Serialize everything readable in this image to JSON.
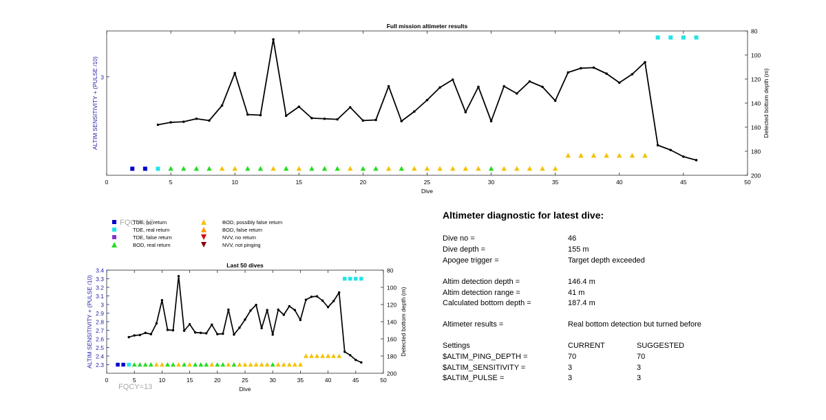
{
  "colors": {
    "tde_no": "#0000cc",
    "tde_real": "#22e5e5",
    "tde_false": "#8833cc",
    "bod_real": "#22dd22",
    "bod_possibly_false": "#f2c200",
    "bod_false": "#ff9900",
    "nvv_no": "#dd0000",
    "nvv_not_pinging": "#880000",
    "left_axis": "#1f1fa8",
    "fqcy": "#a6a6a6"
  },
  "chart_data": [
    {
      "type": "line",
      "title": "Full mission altimeter results",
      "xlabel": "Dive",
      "ylabel_left": "ALTIM SENSITIVITY + (PULSE /10)",
      "ylabel_right": "Detected bottom depth (m)",
      "xlim": [
        0,
        50
      ],
      "x_ticks": [
        0,
        5,
        10,
        15,
        20,
        25,
        30,
        35,
        40,
        45,
        50
      ],
      "ylim_left": [
        2.25,
        3.35
      ],
      "y_ticks_left": [
        3
      ],
      "ylim_right": [
        80,
        200
      ],
      "y_ticks_right": [
        80,
        100,
        120,
        140,
        160,
        180,
        200
      ],
      "right_axis_reversed": true,
      "grid": false,
      "series": [
        {
          "name": "Detected bottom depth",
          "axis": "right",
          "x": [
            4,
            5,
            6,
            7,
            8,
            9,
            10,
            11,
            12,
            13,
            14,
            15,
            16,
            17,
            18,
            19,
            20,
            21,
            22,
            23,
            24,
            25,
            26,
            27,
            28,
            29,
            30,
            31,
            32,
            33,
            34,
            35,
            36,
            37,
            38,
            39,
            40,
            41,
            42,
            43,
            44,
            45,
            46
          ],
          "y": [
            158,
            156,
            155.5,
            153,
            154.5,
            142,
            115,
            149.5,
            150,
            87,
            150.5,
            143,
            152.5,
            153,
            153.5,
            143.5,
            154.5,
            154,
            126,
            155,
            147,
            137.5,
            127,
            120.5,
            147.5,
            126.5,
            155,
            126,
            132,
            122,
            126.5,
            138,
            114.5,
            111,
            110.5,
            115.5,
            123,
            116,
            106,
            175,
            179,
            184.5,
            187.4
          ]
        }
      ],
      "markers": [
        {
          "kind": "TDE, no return",
          "y_left": 2.3,
          "x": [
            2,
            3
          ]
        },
        {
          "kind": "TDE, real return",
          "y_left": 2.3,
          "x": [
            4
          ]
        },
        {
          "kind": "BOD, real return",
          "y_left": 2.3,
          "x": [
            5,
            6,
            7,
            8,
            11,
            12,
            14,
            16,
            17,
            18,
            20,
            21,
            23,
            30
          ]
        },
        {
          "kind": "BOD, possibly false return",
          "y_left": 2.3,
          "x": [
            9,
            10,
            13,
            15,
            19,
            22,
            24,
            25,
            26,
            27,
            28,
            29,
            31,
            32,
            33,
            34,
            35
          ]
        },
        {
          "kind": "BOD, possibly false return",
          "y_left": 2.4,
          "x": [
            36,
            37,
            38,
            39,
            40,
            41,
            42
          ]
        },
        {
          "kind": "TDE, real return",
          "y_left": 3.3,
          "x": [
            43,
            44,
            45,
            46
          ]
        }
      ]
    },
    {
      "type": "line",
      "title": "Last 50 dives",
      "xlabel": "Dive",
      "ylabel_left": "ALTIM SENSITIVITY + (PULSE /10)",
      "ylabel_right": "Detected bottom depth (m)",
      "xlim": [
        0,
        50
      ],
      "x_ticks": [
        0,
        5,
        10,
        15,
        20,
        25,
        30,
        35,
        40,
        45,
        50
      ],
      "ylim_left": [
        2.2,
        3.4
      ],
      "y_ticks_left": [
        2.3,
        2.4,
        2.5,
        2.6,
        2.7,
        2.8,
        2.9,
        3.0,
        3.1,
        3.2,
        3.3,
        3.4
      ],
      "y_tick_labels_left": [
        "2.3",
        "2.4",
        "2.5",
        "2.6",
        "2.7",
        "2.8",
        "2.9",
        "3",
        "3.1",
        "3.2",
        "3.3",
        "3.4"
      ],
      "ylim_right": [
        80,
        200
      ],
      "y_ticks_right": [
        80,
        100,
        120,
        140,
        160,
        180,
        200
      ],
      "right_axis_reversed": true,
      "grid": false
    }
  ],
  "legend": [
    {
      "label": "TDE, no return",
      "shape": "square",
      "color": "#0000cc"
    },
    {
      "label": "TDE, real return",
      "shape": "square",
      "color": "#22e5e5"
    },
    {
      "label": "TDE, false return",
      "shape": "square",
      "color": "#8833cc"
    },
    {
      "label": "BOD, real return",
      "shape": "triangle-up",
      "color": "#22dd22"
    },
    {
      "label": "BOD, possibly false return",
      "shape": "triangle-up",
      "color": "#f2c200"
    },
    {
      "label": "BOD, false return",
      "shape": "triangle-up",
      "color": "#ff9900"
    },
    {
      "label": "NVV, no return",
      "shape": "triangle-down",
      "color": "#dd0000"
    },
    {
      "label": "NVV, not pinging",
      "shape": "triangle-down",
      "color": "#880000"
    }
  ],
  "fqcy_label": "FQCY=13",
  "diagnostic": {
    "heading": "Altimeter diagnostic for latest dive:",
    "dive_no_label": "Dive no =",
    "dive_no": "46",
    "dive_depth_label": "Dive depth =",
    "dive_depth": "155 m",
    "apogee_label": "Apogee trigger =",
    "apogee": "Target depth exceeded",
    "altim_depth_label": "Altim detection depth =",
    "altim_depth": "146.4 m",
    "altim_range_label": "Altim detection range =",
    "altim_range": "41 m",
    "calc_depth_label": "Calculated bottom depth =",
    "calc_depth": "187.4 m",
    "results_label": "Altimeter results =",
    "results": "Real bottom detection but turned before",
    "settings_label": "Settings",
    "current_label": "CURRENT",
    "suggested_label": "SUGGESTED",
    "settings": [
      {
        "name": "$ALTIM_PING_DEPTH =",
        "current": "70",
        "suggested": "70"
      },
      {
        "name": "$ALTIM_SENSITIVITY =",
        "current": "3",
        "suggested": "3"
      },
      {
        "name": "$ALTIM_PULSE =",
        "current": "3",
        "suggested": "3"
      }
    ]
  }
}
